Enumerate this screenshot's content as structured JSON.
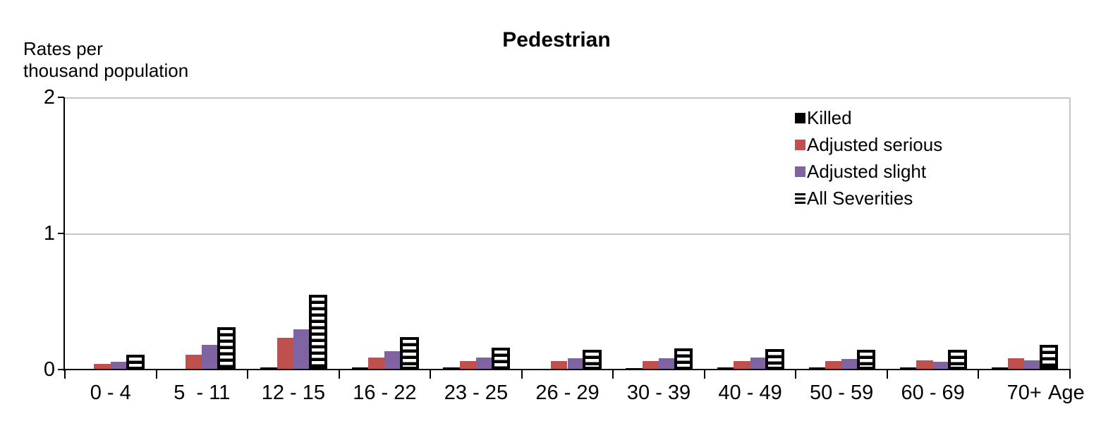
{
  "chart_data": {
    "type": "bar",
    "title": "Pedestrian",
    "ylabel_lines": [
      "Rates per",
      "thousand population"
    ],
    "xlabel": "Age",
    "categories": [
      "0 - 4",
      "5  - 11",
      "12 - 15",
      "16 - 22",
      "23 - 25",
      "26 - 29",
      "30 - 39",
      "40 - 49",
      "50 - 59",
      "60 - 69",
      "70+"
    ],
    "series": [
      {
        "name": "Killed",
        "color": "#000000",
        "pattern": null,
        "values": [
          0,
          0,
          0.015,
          0.018,
          0.015,
          0,
          0.013,
          0.017,
          0.015,
          0.015,
          0.017
        ]
      },
      {
        "name": "Adjusted serious",
        "color": "#c0504d",
        "pattern": null,
        "values": [
          0.04,
          0.11,
          0.235,
          0.09,
          0.06,
          0.063,
          0.06,
          0.061,
          0.062,
          0.07,
          0.084
        ]
      },
      {
        "name": "Adjusted slight",
        "color": "#8064a2",
        "pattern": null,
        "values": [
          0.055,
          0.18,
          0.295,
          0.133,
          0.089,
          0.082,
          0.082,
          0.086,
          0.08,
          0.055,
          0.067
        ]
      },
      {
        "name": "All Severities",
        "color": "#000000",
        "pattern": "horizontal-stripes",
        "values": [
          0.108,
          0.31,
          0.55,
          0.237,
          0.163,
          0.143,
          0.156,
          0.148,
          0.147,
          0.146,
          0.18
        ]
      }
    ],
    "ylim": [
      0,
      2
    ],
    "yticks": [
      0,
      1,
      2
    ],
    "grid": {
      "horizontal_at": [
        1,
        2
      ],
      "color": "#c6c6c6"
    },
    "axis_color": "#000000",
    "legend_position": "top-right"
  }
}
